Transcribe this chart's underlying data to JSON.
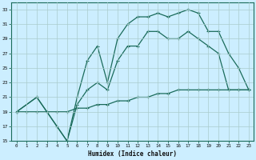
{
  "xlabel": "Humidex (Indice chaleur)",
  "bg_color": "#cceeff",
  "grid_color": "#aacccc",
  "line_color": "#1a6b5a",
  "xlim": [
    -0.5,
    23.5
  ],
  "ylim": [
    15,
    34
  ],
  "xticks": [
    0,
    1,
    2,
    3,
    4,
    5,
    6,
    7,
    8,
    9,
    10,
    11,
    12,
    13,
    14,
    15,
    16,
    17,
    18,
    19,
    20,
    21,
    22,
    23
  ],
  "yticks": [
    15,
    17,
    19,
    21,
    23,
    25,
    27,
    29,
    31,
    33
  ],
  "series_bottom_x": [
    0,
    1,
    2,
    3,
    4,
    5,
    6,
    7,
    8,
    9,
    10,
    11,
    12,
    13,
    14,
    15,
    16,
    17,
    18,
    19,
    20,
    21,
    22,
    23
  ],
  "series_bottom_y": [
    19,
    19,
    19,
    19,
    19,
    19,
    19.5,
    19.5,
    20,
    20,
    20.5,
    20.5,
    21,
    21,
    21.5,
    21.5,
    22,
    22,
    22,
    22,
    22,
    22,
    22,
    22
  ],
  "series_mid_x": [
    0,
    2,
    3,
    4,
    5,
    6,
    7,
    8,
    9,
    10,
    11,
    12,
    13,
    14,
    15,
    16,
    17,
    18,
    19,
    20,
    21,
    22,
    23
  ],
  "series_mid_y": [
    19,
    21,
    19,
    17,
    15,
    20,
    22,
    23,
    22,
    26,
    28,
    28,
    30,
    30,
    29,
    29,
    30,
    29,
    28,
    27,
    22,
    22,
    22
  ],
  "series_top_x": [
    0,
    2,
    4,
    5,
    6,
    7,
    8,
    9,
    10,
    11,
    12,
    13,
    14,
    15,
    16,
    17,
    18,
    19,
    20,
    21,
    22,
    23
  ],
  "series_top_y": [
    19,
    21,
    17,
    15,
    21,
    26,
    28,
    23,
    29,
    31,
    32,
    32,
    32.5,
    32,
    32.5,
    33,
    32.5,
    30,
    30,
    27,
    25,
    22
  ]
}
